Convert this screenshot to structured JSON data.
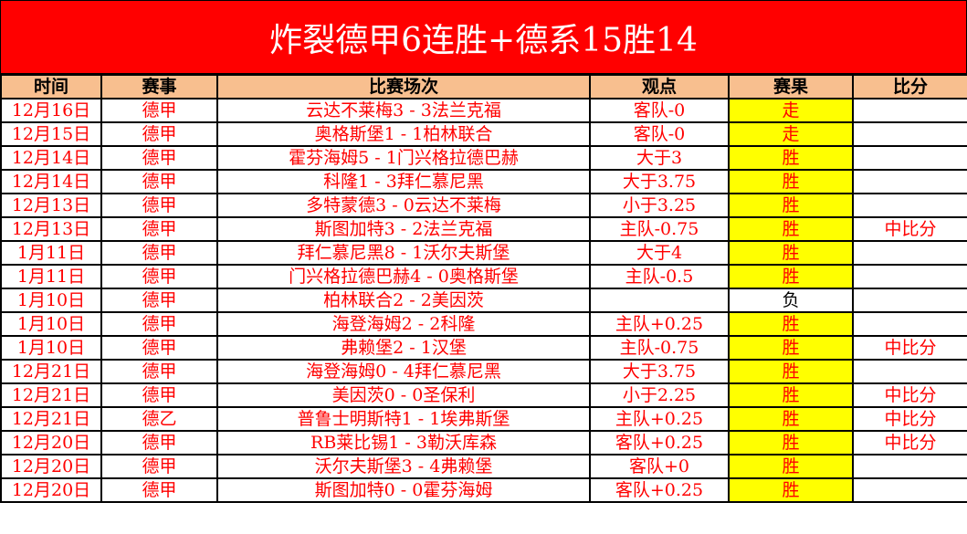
{
  "title": "炸裂德甲6连胜+德系15胜14",
  "colors": {
    "title_bg": "#ff0000",
    "header_bg": "#f8bf8f",
    "highlight": "#ffff00",
    "text": "#ff0000"
  },
  "headers": [
    "时间",
    "赛事",
    "比赛场次",
    "观点",
    "赛果",
    "比分"
  ],
  "rows": [
    {
      "date": "12月16日",
      "league": "德甲",
      "match": "云达不莱梅3 - 3法兰克福",
      "pick": "客队-0",
      "result": "走",
      "score": "",
      "highlight": true
    },
    {
      "date": "12月15日",
      "league": "德甲",
      "match": "奥格斯堡1 - 1柏林联合",
      "pick": "客队-0",
      "result": "走",
      "score": "",
      "highlight": true
    },
    {
      "date": "12月14日",
      "league": "德甲",
      "match": "霍芬海姆5 - 1门兴格拉德巴赫",
      "pick": "大于3",
      "result": "胜",
      "score": "",
      "highlight": true
    },
    {
      "date": "12月14日",
      "league": "德甲",
      "match": "科隆1 - 3拜仁慕尼黑",
      "pick": "大于3.75",
      "result": "胜",
      "score": "",
      "highlight": true
    },
    {
      "date": "12月13日",
      "league": "德甲",
      "match": "多特蒙德3 - 0云达不莱梅",
      "pick": "小于3.25",
      "result": "胜",
      "score": "",
      "highlight": true
    },
    {
      "date": "12月13日",
      "league": "德甲",
      "match": "斯图加特3 - 2法兰克福",
      "pick": "主队-0.75",
      "result": "胜",
      "score": "中比分",
      "highlight": true
    },
    {
      "date": "1月11日",
      "league": "德甲",
      "match": "拜仁慕尼黑8 - 1沃尔夫斯堡",
      "pick": "大于4",
      "result": "胜",
      "score": "",
      "highlight": true
    },
    {
      "date": "1月11日",
      "league": "德甲",
      "match": "门兴格拉德巴赫4 - 0奥格斯堡",
      "pick": "主队-0.5",
      "result": "胜",
      "score": "",
      "highlight": true
    },
    {
      "date": "1月10日",
      "league": "德甲",
      "match": "柏林联合2 - 2美因茨",
      "pick": "",
      "result": "负",
      "score": "",
      "highlight": false
    },
    {
      "date": "1月10日",
      "league": "德甲",
      "match": "海登海姆2 - 2科隆",
      "pick": "主队+0.25",
      "result": "胜",
      "score": "",
      "highlight": true
    },
    {
      "date": "1月10日",
      "league": "德甲",
      "match": "弗赖堡2 - 1汉堡",
      "pick": "主队-0.75",
      "result": "胜",
      "score": "中比分",
      "highlight": true
    },
    {
      "date": "12月21日",
      "league": "德甲",
      "match": "海登海姆0 - 4拜仁慕尼黑",
      "pick": "大于3.75",
      "result": "胜",
      "score": "",
      "highlight": true
    },
    {
      "date": "12月21日",
      "league": "德甲",
      "match": "美因茨0 - 0圣保利",
      "pick": "小于2.25",
      "result": "胜",
      "score": "中比分",
      "highlight": true
    },
    {
      "date": "12月21日",
      "league": "德乙",
      "match": "普鲁士明斯特1 - 1埃弗斯堡",
      "pick": "主队+0.25",
      "result": "胜",
      "score": "中比分",
      "highlight": true
    },
    {
      "date": "12月20日",
      "league": "德甲",
      "match": "RB莱比锡1 - 3勒沃库森",
      "pick": "客队+0.25",
      "result": "胜",
      "score": "中比分",
      "highlight": true
    },
    {
      "date": "12月20日",
      "league": "德甲",
      "match": "沃尔夫斯堡3 - 4弗赖堡",
      "pick": "客队+0",
      "result": "胜",
      "score": "",
      "highlight": true
    },
    {
      "date": "12月20日",
      "league": "德甲",
      "match": "斯图加特0 - 0霍芬海姆",
      "pick": "客队+0.25",
      "result": "胜",
      "score": "",
      "highlight": true
    }
  ]
}
